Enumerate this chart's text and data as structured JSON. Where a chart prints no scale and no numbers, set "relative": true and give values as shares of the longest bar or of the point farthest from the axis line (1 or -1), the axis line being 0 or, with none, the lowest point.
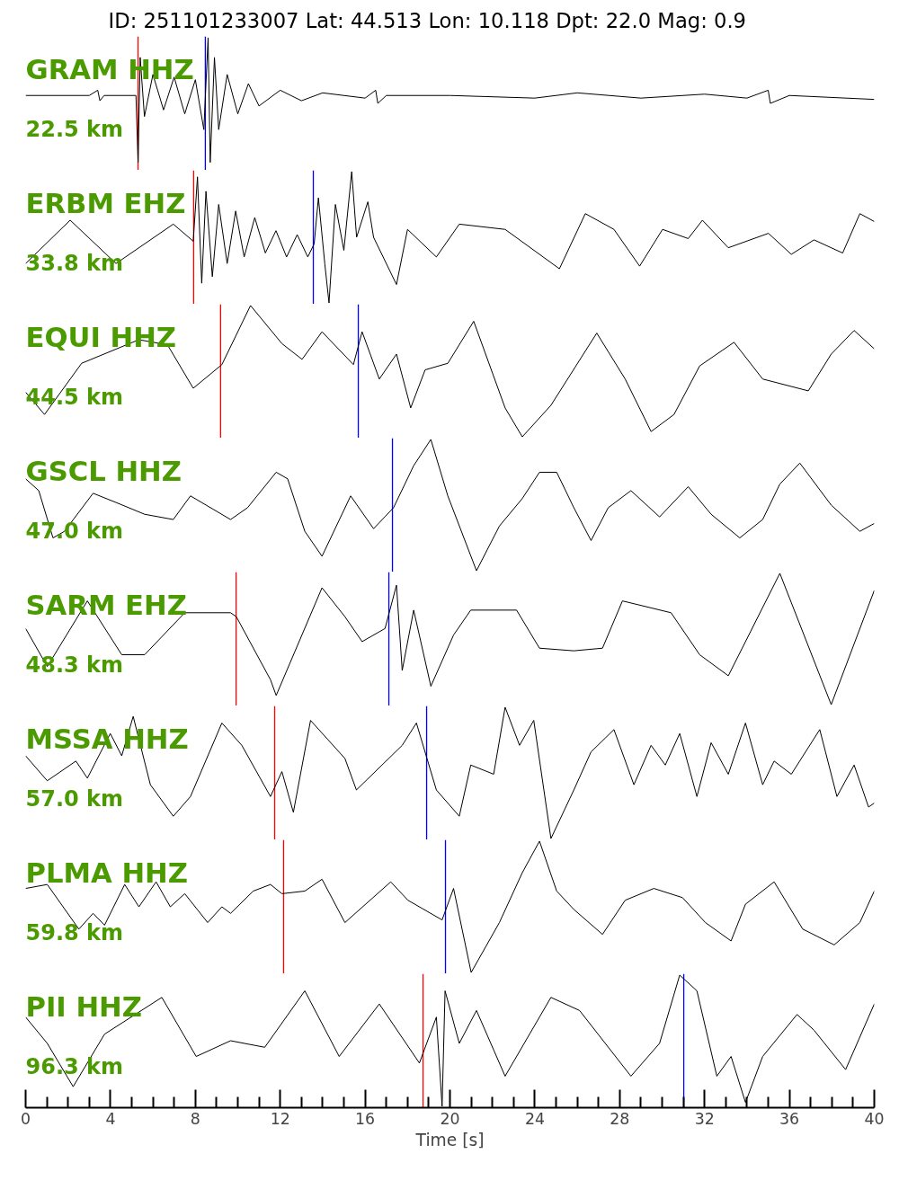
{
  "chart_data": [
    {
      "type": "line",
      "relative": true,
      "title": "ID: 251101233007 Lat:  44.513 Lon:  10.118 Dpt:    22.0 Mag:   0.9",
      "annotations": [
        "GRAM HHZ",
        "22.5 km"
      ],
      "xlim": [
        0,
        40
      ],
      "tick_labels": false,
      "x": [
        0,
        3,
        3.4,
        3.5,
        3.7,
        5.2,
        5.3,
        5.4,
        5.6,
        6,
        6.5,
        7,
        7.5,
        8,
        8.4,
        8.6,
        8.7,
        8.9,
        9.1,
        9.5,
        10,
        10.5,
        11,
        12,
        13,
        14,
        16,
        16.5,
        16.6,
        17,
        20,
        24,
        26,
        29,
        32,
        34,
        35,
        35.1,
        36,
        40
      ],
      "series": [
        {
          "color": "#000000",
          "values": [
            0.56,
            0.56,
            0.6,
            0.52,
            0.56,
            0.56,
            0.05,
            0.85,
            0.4,
            0.72,
            0.45,
            0.7,
            0.42,
            0.68,
            0.3,
            1.0,
            0.05,
            0.85,
            0.3,
            0.72,
            0.42,
            0.65,
            0.48,
            0.6,
            0.52,
            0.58,
            0.54,
            0.6,
            0.5,
            0.56,
            0.56,
            0.54,
            0.58,
            0.54,
            0.57,
            0.54,
            0.6,
            0.5,
            0.56,
            0.53
          ]
        }
      ],
      "ref_lines": [
        {
          "axis": "x",
          "value": 5.3,
          "color": "#ff0000"
        },
        {
          "axis": "x",
          "value": 8.47,
          "color": "#0000ff"
        }
      ]
    },
    {
      "type": "line",
      "relative": true,
      "annotations": [
        "ERBM EHZ",
        "33.8 km"
      ],
      "xlim": [
        0,
        40
      ],
      "tick_labels": false,
      "x": [
        0,
        2.1,
        4.26,
        6.96,
        7.9,
        8.1,
        8.3,
        8.5,
        8.8,
        9.1,
        9.5,
        9.9,
        10.3,
        10.8,
        11.3,
        11.8,
        12.3,
        12.8,
        13.3,
        13.6,
        13.8,
        14.1,
        14.3,
        14.6,
        15.0,
        15.37,
        15.6,
        16.13,
        16.4,
        17.48,
        18.0,
        19.36,
        20.44,
        22.6,
        25.16,
        26.38,
        27.73,
        28.94,
        30.02,
        31.23,
        31.9,
        33.12,
        35.01,
        36.09,
        37.16,
        38.51,
        39.32,
        40
      ],
      "series": [
        {
          "color": "#000000",
          "values": [
            0.3,
            0.63,
            0.3,
            0.6,
            0.47,
            0.96,
            0.15,
            0.85,
            0.2,
            0.75,
            0.3,
            0.7,
            0.35,
            0.65,
            0.38,
            0.55,
            0.35,
            0.52,
            0.35,
            0.45,
            0.8,
            0.3,
            0.0,
            0.75,
            0.4,
            1.0,
            0.5,
            0.77,
            0.5,
            0.14,
            0.56,
            0.35,
            0.6,
            0.56,
            0.26,
            0.68,
            0.56,
            0.28,
            0.56,
            0.49,
            0.63,
            0.42,
            0.53,
            0.37,
            0.48,
            0.38,
            0.68,
            0.62
          ]
        }
      ],
      "ref_lines": [
        {
          "axis": "x",
          "value": 7.92,
          "color": "#ff0000"
        },
        {
          "axis": "x",
          "value": 13.56,
          "color": "#0000ff"
        }
      ]
    },
    {
      "type": "line",
      "relative": true,
      "annotations": [
        "EQUI HHZ",
        "44.5 km"
      ],
      "xlim": [
        0,
        40
      ],
      "tick_labels": false,
      "x": [
        0,
        0.89,
        2.64,
        5.34,
        6.69,
        7.9,
        9.25,
        10.6,
        12.08,
        13.03,
        13.97,
        15.45,
        15.86,
        16.67,
        17.48,
        18.15,
        18.83,
        19.9,
        21.12,
        22.6,
        23.41,
        24.76,
        26.92,
        28.26,
        29.48,
        30.56,
        31.77,
        33.39,
        34.74,
        36.89,
        37.97,
        39.05,
        40
      ],
      "series": [
        {
          "color": "#000000",
          "values": [
            0.34,
            0.17,
            0.56,
            0.74,
            0.7,
            0.37,
            0.55,
            1.0,
            0.71,
            0.59,
            0.8,
            0.55,
            0.8,
            0.44,
            0.63,
            0.22,
            0.51,
            0.56,
            0.88,
            0.22,
            0.0,
            0.24,
            0.79,
            0.44,
            0.04,
            0.17,
            0.54,
            0.72,
            0.44,
            0.35,
            0.63,
            0.81,
            0.67
          ]
        }
      ],
      "ref_lines": [
        {
          "axis": "x",
          "value": 9.19,
          "color": "#ff0000"
        },
        {
          "axis": "x",
          "value": 15.68,
          "color": "#0000ff"
        }
      ]
    },
    {
      "type": "line",
      "relative": true,
      "annotations": [
        "GSCL HHZ",
        "47.0 km"
      ],
      "xlim": [
        0,
        40
      ],
      "tick_labels": false,
      "x": [
        0,
        0.62,
        1.29,
        1.83,
        3.18,
        4.26,
        5.61,
        6.96,
        7.77,
        9.66,
        10.46,
        11.81,
        12.35,
        13.16,
        13.97,
        15.32,
        16.4,
        17.34,
        18.29,
        19.1,
        19.9,
        21.25,
        22.33,
        23.41,
        24.22,
        25.03,
        25.84,
        26.65,
        27.46,
        28.53,
        29.88,
        31.23,
        32.31,
        33.66,
        34.74,
        35.55,
        36.49,
        37.97,
        39.32,
        40
      ],
      "series": [
        {
          "color": "#000000",
          "values": [
            0.7,
            0.61,
            0.25,
            0.3,
            0.59,
            0.52,
            0.43,
            0.39,
            0.57,
            0.39,
            0.48,
            0.75,
            0.7,
            0.3,
            0.11,
            0.57,
            0.32,
            0.48,
            0.8,
            1.0,
            0.57,
            0.0,
            0.34,
            0.55,
            0.75,
            0.75,
            0.48,
            0.23,
            0.48,
            0.61,
            0.41,
            0.64,
            0.43,
            0.25,
            0.39,
            0.66,
            0.82,
            0.5,
            0.3,
            0.36
          ]
        }
      ],
      "ref_lines": [
        {
          "axis": "x",
          "value": 17.29,
          "color": "#0000ff"
        }
      ]
    },
    {
      "type": "line",
      "relative": true,
      "annotations": [
        "SARM EHZ",
        "48.3 km"
      ],
      "xlim": [
        0,
        40
      ],
      "tick_labels": false,
      "x": [
        0,
        1.02,
        2.91,
        4.53,
        5.61,
        7.5,
        9.66,
        9.93,
        11.54,
        11.81,
        13.97,
        15.05,
        15.86,
        16.94,
        17.48,
        17.75,
        18.29,
        19.1,
        20.17,
        20.98,
        23.14,
        24.22,
        25.84,
        27.19,
        28.13,
        30.42,
        31.77,
        33.12,
        35.55,
        37.97,
        40
      ],
      "series": [
        {
          "color": "#000000",
          "values": [
            0.58,
            0.29,
            0.79,
            0.38,
            0.38,
            0.7,
            0.7,
            0.67,
            0.19,
            0.07,
            0.89,
            0.67,
            0.48,
            0.58,
            0.91,
            0.26,
            0.72,
            0.14,
            0.53,
            0.72,
            0.72,
            0.43,
            0.41,
            0.43,
            0.79,
            0.7,
            0.38,
            0.22,
            1.0,
            0.0,
            0.87
          ]
        }
      ],
      "ref_lines": [
        {
          "axis": "x",
          "value": 9.92,
          "color": "#ff0000"
        },
        {
          "axis": "x",
          "value": 17.12,
          "color": "#0000ff"
        }
      ]
    },
    {
      "type": "line",
      "relative": true,
      "annotations": [
        "MSSA HHZ",
        "57.0 km"
      ],
      "xlim": [
        0,
        40
      ],
      "tick_labels": false,
      "x": [
        0,
        1.02,
        2.37,
        2.91,
        3.99,
        4.53,
        5.07,
        5.88,
        6.96,
        7.77,
        9.25,
        10.19,
        11.54,
        12.08,
        12.62,
        13.43,
        15.05,
        15.59,
        17.75,
        18.42,
        19.36,
        20.44,
        20.98,
        22.06,
        22.6,
        23.28,
        23.95,
        24.76,
        25.84,
        26.65,
        27.73,
        28.67,
        29.48,
        30.15,
        30.83,
        31.64,
        32.31,
        33.12,
        33.93,
        34.74,
        35.28,
        36.09,
        37.43,
        38.24,
        39.05,
        39.73,
        40
      ],
      "series": [
        {
          "color": "#000000",
          "values": [
            0.63,
            0.44,
            0.59,
            0.46,
            0.8,
            0.63,
            0.93,
            0.41,
            0.17,
            0.32,
            0.88,
            0.71,
            0.32,
            0.51,
            0.2,
            0.9,
            0.61,
            0.37,
            0.71,
            0.88,
            0.37,
            0.17,
            0.56,
            0.49,
            1.0,
            0.71,
            0.9,
            0.0,
            0.37,
            0.66,
            0.83,
            0.41,
            0.71,
            0.56,
            0.8,
            0.32,
            0.73,
            0.49,
            0.88,
            0.41,
            0.59,
            0.49,
            0.83,
            0.32,
            0.56,
            0.24,
            0.27
          ]
        }
      ],
      "ref_lines": [
        {
          "axis": "x",
          "value": 11.74,
          "color": "#ff0000"
        },
        {
          "axis": "x",
          "value": 18.9,
          "color": "#0000ff"
        }
      ]
    },
    {
      "type": "line",
      "relative": true,
      "annotations": [
        "PLMA HHZ",
        "59.8 km"
      ],
      "xlim": [
        0,
        40
      ],
      "tick_labels": false,
      "x": [
        0,
        1.02,
        2.51,
        3.18,
        3.72,
        4.67,
        5.34,
        6.15,
        6.82,
        7.5,
        8.58,
        9.25,
        9.66,
        10.73,
        11.54,
        12.08,
        13.16,
        13.97,
        15.05,
        17.21,
        18.02,
        19.63,
        20.17,
        21.0,
        22.33,
        23.41,
        24.22,
        25.03,
        25.84,
        27.19,
        28.26,
        29.61,
        30.96,
        32.04,
        33.25,
        33.93,
        35.28,
        36.63,
        38.11,
        39.32,
        40
      ],
      "series": [
        {
          "color": "#000000",
          "values": [
            0.64,
            0.67,
            0.33,
            0.45,
            0.36,
            0.67,
            0.5,
            0.69,
            0.5,
            0.6,
            0.38,
            0.5,
            0.45,
            0.62,
            0.67,
            0.6,
            0.62,
            0.71,
            0.38,
            0.69,
            0.55,
            0.4,
            0.64,
            0.0,
            0.38,
            0.76,
            1.0,
            0.62,
            0.48,
            0.29,
            0.55,
            0.64,
            0.57,
            0.38,
            0.24,
            0.52,
            0.69,
            0.33,
            0.21,
            0.38,
            0.62
          ]
        }
      ],
      "ref_lines": [
        {
          "axis": "x",
          "value": 12.16,
          "color": "#ff0000"
        },
        {
          "axis": "x",
          "value": 19.79,
          "color": "#0000ff"
        }
      ]
    },
    {
      "type": "line",
      "relative": true,
      "annotations": [
        "PII HHZ",
        "96.3 km"
      ],
      "xlim": [
        0,
        40
      ],
      "tick_labels": "x",
      "xlabel": "Time [s]",
      "xticks": [
        0,
        {
          "value": 1,
          "label": null
        },
        {
          "value": 2,
          "label": null
        },
        {
          "value": 3,
          "label": null
        },
        4,
        {
          "value": 5,
          "label": null
        },
        {
          "value": 6,
          "label": null
        },
        {
          "value": 7,
          "label": null
        },
        8,
        {
          "value": 9,
          "label": null
        },
        {
          "value": 10,
          "label": null
        },
        {
          "value": 11,
          "label": null
        },
        12,
        {
          "value": 13,
          "label": null
        },
        {
          "value": 14,
          "label": null
        },
        {
          "value": 15,
          "label": null
        },
        16,
        {
          "value": 17,
          "label": null
        },
        {
          "value": 18,
          "label": null
        },
        {
          "value": 19,
          "label": null
        },
        20,
        {
          "value": 21,
          "label": null
        },
        {
          "value": 22,
          "label": null
        },
        {
          "value": 23,
          "label": null
        },
        24,
        {
          "value": 25,
          "label": null
        },
        {
          "value": 26,
          "label": null
        },
        {
          "value": 27,
          "label": null
        },
        28,
        {
          "value": 29,
          "label": null
        },
        {
          "value": 30,
          "label": null
        },
        {
          "value": 31,
          "label": null
        },
        32,
        {
          "value": 33,
          "label": null
        },
        {
          "value": 34,
          "label": null
        },
        {
          "value": 35,
          "label": null
        },
        36,
        {
          "value": 37,
          "label": null
        },
        {
          "value": 38,
          "label": null
        },
        {
          "value": 39,
          "label": null
        },
        40
      ],
      "x": [
        0,
        1.02,
        2.24,
        3.72,
        6.42,
        8.04,
        9.66,
        11.27,
        13.16,
        14.78,
        16.67,
        18.56,
        19.36,
        19.63,
        19.77,
        20.44,
        21.25,
        22.6,
        24.76,
        26.11,
        28.53,
        29.88,
        30.83,
        31.64,
        32.58,
        33.25,
        33.93,
        34.74,
        36.36,
        37.16,
        38.65,
        40
      ],
      "series": [
        {
          "color": "#000000",
          "values": [
            0.68,
            0.48,
            0.15,
            0.55,
            0.83,
            0.38,
            0.5,
            0.45,
            0.88,
            0.38,
            0.78,
            0.33,
            0.68,
            0.0,
            0.88,
            0.48,
            0.73,
            0.23,
            0.83,
            0.73,
            0.23,
            0.48,
            1.0,
            0.88,
            0.23,
            0.38,
            0.03,
            0.38,
            0.7,
            0.58,
            0.28,
            0.78
          ]
        }
      ],
      "ref_lines": [
        {
          "axis": "x",
          "value": 18.73,
          "color": "#ff0000"
        },
        {
          "axis": "x",
          "value": 31.02,
          "color": "#0000ff"
        }
      ]
    }
  ]
}
